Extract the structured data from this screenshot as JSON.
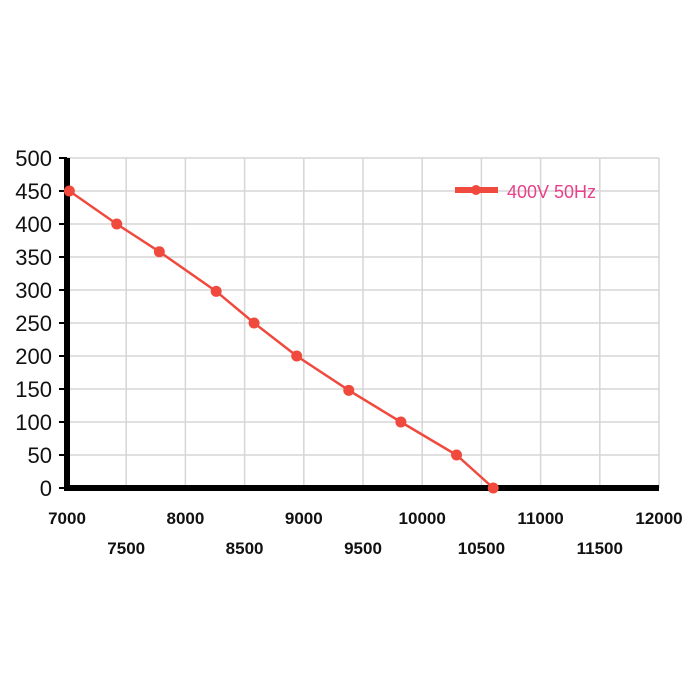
{
  "chart_data": {
    "type": "line",
    "title": "",
    "xlabel": "",
    "ylabel": "",
    "xlim": [
      7000,
      12000
    ],
    "ylim": [
      0,
      500
    ],
    "x_ticks_row1": [
      7000,
      8000,
      9000,
      10000,
      11000,
      12000
    ],
    "x_ticks_row2": [
      7500,
      8500,
      9500,
      10500,
      11500
    ],
    "y_ticks": [
      0,
      50,
      100,
      150,
      200,
      250,
      300,
      350,
      400,
      450,
      500
    ],
    "grid": true,
    "legend_position": "top-right",
    "series": [
      {
        "name": "400V 50Hz",
        "color": "#f04a3e",
        "label_color": "#e8408a",
        "x": [
          7020,
          7420,
          7780,
          8260,
          8580,
          8940,
          9380,
          9820,
          10290,
          10600
        ],
        "y": [
          450,
          400,
          358,
          298,
          250,
          200,
          148,
          100,
          50,
          0
        ]
      }
    ]
  }
}
